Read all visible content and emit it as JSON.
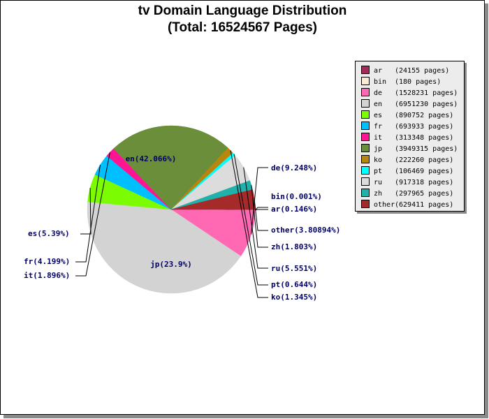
{
  "chart_data": {
    "type": "pie",
    "title": "tv Domain Language Distribution",
    "subtitle": "(Total: 16524567 Pages)",
    "legend_position": "top-right",
    "slices": [
      {
        "code": "ar",
        "pages": 24155,
        "legend": "(24155 pages)",
        "label": "ar(0.146%)",
        "color": "#a52a5a"
      },
      {
        "code": "bin",
        "pages": 180,
        "legend": "(180 pages)",
        "label": "bin(0.001%)",
        "color": "#faebd7"
      },
      {
        "code": "de",
        "pages": 1528231,
        "legend": "(1528231 pages)",
        "label": "de(9.248%)",
        "color": "#ff69b4"
      },
      {
        "code": "en",
        "pages": 6951230,
        "legend": "(6951230 pages)",
        "label": "en(42.066%)",
        "color": "#d3d3d3"
      },
      {
        "code": "es",
        "pages": 890752,
        "legend": "(890752 pages)",
        "label": "es(5.39%)",
        "color": "#7cfc00"
      },
      {
        "code": "fr",
        "pages": 693933,
        "legend": "(693933 pages)",
        "label": "fr(4.199%)",
        "color": "#00bfff"
      },
      {
        "code": "it",
        "pages": 313348,
        "legend": "(313348 pages)",
        "label": "it(1.896%)",
        "color": "#ff1493"
      },
      {
        "code": "jp",
        "pages": 3949315,
        "legend": "(3949315 pages)",
        "label": "jp(23.9%)",
        "color": "#6b8e3a"
      },
      {
        "code": "ko",
        "pages": 222260,
        "legend": "(222260 pages)",
        "label": "ko(1.345%)",
        "color": "#b8860b"
      },
      {
        "code": "pt",
        "pages": 106469,
        "legend": "(106469 pages)",
        "label": "pt(0.644%)",
        "color": "#00ffff"
      },
      {
        "code": "ru",
        "pages": 917318,
        "legend": "(917318 pages)",
        "label": "ru(5.551%)",
        "color": "#dcdcdc"
      },
      {
        "code": "zh",
        "pages": 297965,
        "legend": "(297965 pages)",
        "label": "zh(1.803%)",
        "color": "#20b2aa"
      },
      {
        "code": "other",
        "pages": 629411,
        "legend": "(629411 pages)",
        "label": "other(3.80894%)",
        "color": "#a52a2a"
      }
    ]
  }
}
